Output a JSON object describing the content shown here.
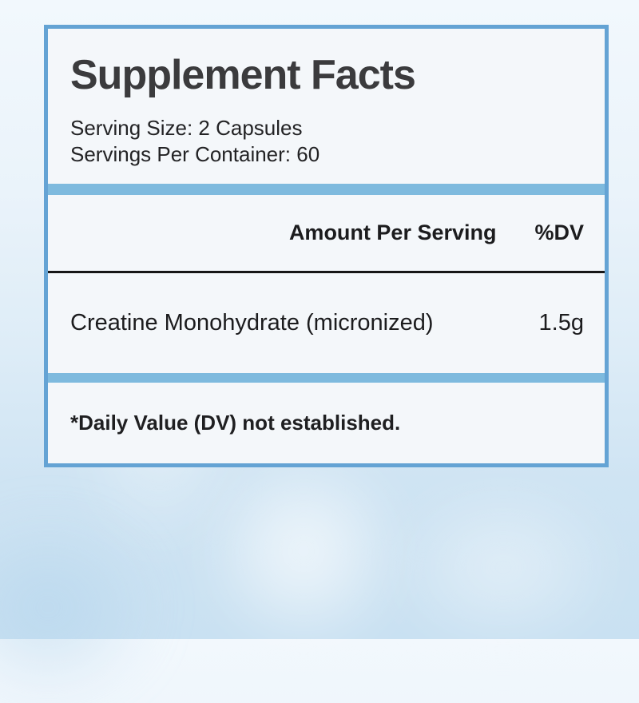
{
  "label": {
    "title": "Supplement Facts",
    "serving_size": "Serving Size: 2 Capsules",
    "servings_per_container": "Servings Per Container: 60",
    "header": {
      "amount_per_serving": "Amount Per Serving",
      "dv": "%DV"
    },
    "rows": [
      {
        "name": "Creatine Monohydrate (micronized)",
        "amount": "1.5g",
        "dv": ""
      }
    ],
    "footnote": "*Daily Value (DV) not established."
  },
  "colors": {
    "panel_border": "#64a3d4",
    "divider_blue": "#7ebade",
    "divider_black": "#161616",
    "panel_background": "#f4f7fa",
    "title_text": "#3b3b3d",
    "body_text": "#1c1c1e",
    "background_top": "#f2f8fd",
    "background_bottom": "#c9e1f2"
  }
}
